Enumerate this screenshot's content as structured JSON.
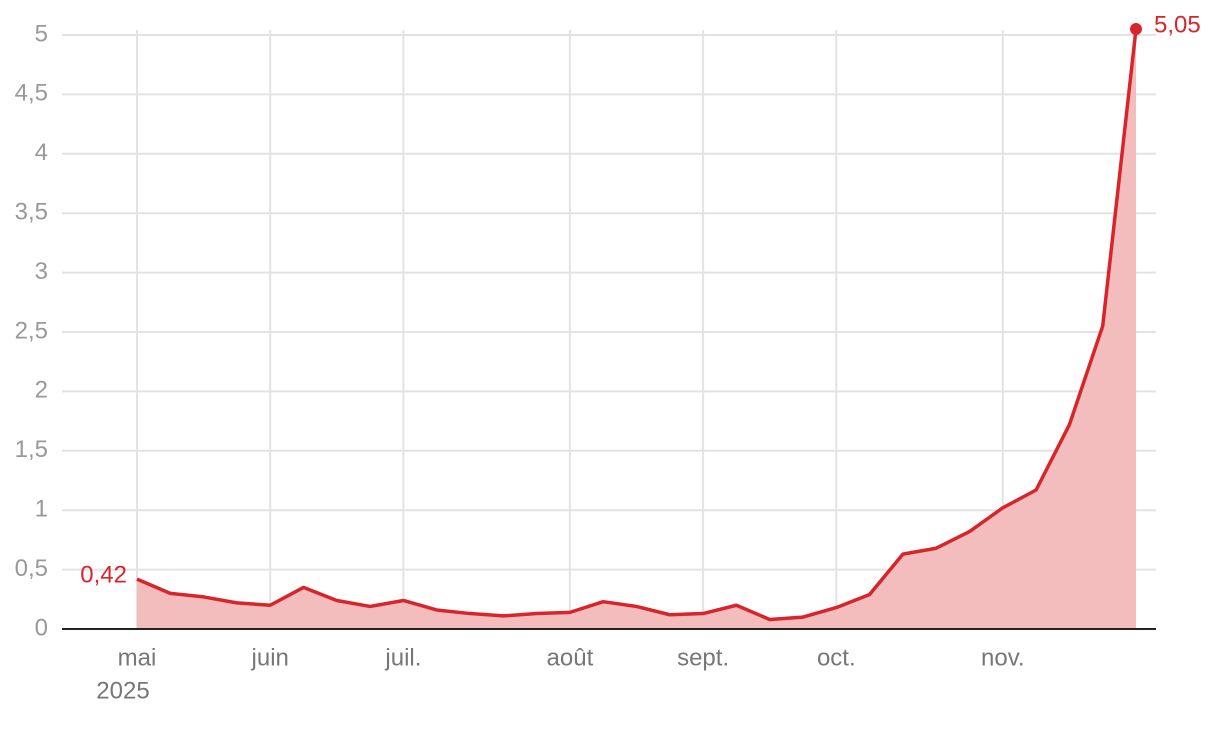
{
  "chart_data": {
    "type": "area",
    "categories": [
      "mai",
      null,
      null,
      null,
      "juin",
      null,
      null,
      null,
      "juil.",
      null,
      null,
      null,
      null,
      "août",
      null,
      null,
      null,
      "sept.",
      null,
      null,
      null,
      "oct.",
      null,
      null,
      null,
      null,
      "nov.",
      null,
      null,
      null,
      null
    ],
    "year_label": "2025",
    "values": [
      0.42,
      0.3,
      0.27,
      0.22,
      0.2,
      0.35,
      0.24,
      0.19,
      0.24,
      0.16,
      0.13,
      0.11,
      0.13,
      0.14,
      0.23,
      0.19,
      0.12,
      0.13,
      0.2,
      0.08,
      0.1,
      0.18,
      0.29,
      0.63,
      0.68,
      0.82,
      1.02,
      1.17,
      1.72,
      2.55,
      5.05
    ],
    "value_labels": [
      "0,42",
      null,
      null,
      null,
      null,
      null,
      null,
      null,
      null,
      null,
      null,
      null,
      null,
      null,
      null,
      null,
      null,
      null,
      null,
      null,
      null,
      null,
      null,
      null,
      null,
      null,
      null,
      null,
      null,
      null,
      "5,05"
    ],
    "color": "#d7262b",
    "fill_color": "#f3bcbd",
    "ylim": [
      0,
      5
    ],
    "yticks": [
      0,
      {
        "value": 0.5,
        "label": "0,5"
      },
      1,
      {
        "value": 1.5,
        "label": "1,5"
      },
      2,
      {
        "value": 2.5,
        "label": "2,5"
      },
      3,
      {
        "value": 3.5,
        "label": "3,5"
      },
      4,
      {
        "value": 4.5,
        "label": "4,5"
      },
      5
    ],
    "grid": true
  }
}
